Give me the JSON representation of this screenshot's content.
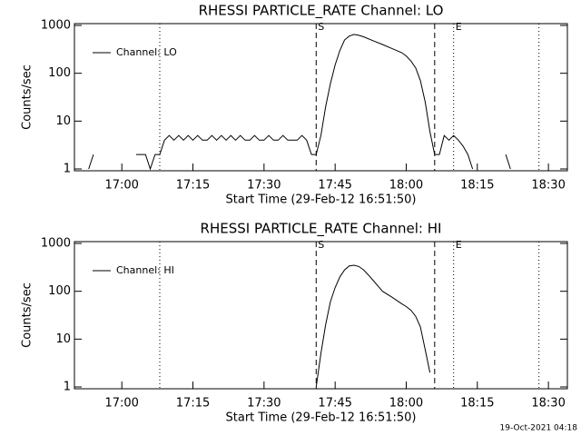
{
  "chart_data": [
    {
      "type": "line",
      "title": "RHESSI PARTICLE_RATE Channel: LO",
      "xlabel": "Start Time (29-Feb-12 16:51:50)",
      "ylabel": "Counts/sec",
      "log_y": true,
      "x": [
        "16:53",
        "16:54",
        "16:55",
        "17:03",
        "17:05",
        "17:06",
        "17:07",
        "17:08",
        "17:09",
        "17:10",
        "17:11",
        "17:12",
        "17:13",
        "17:14",
        "17:15",
        "17:16",
        "17:17",
        "17:18",
        "17:19",
        "17:20",
        "17:21",
        "17:22",
        "17:23",
        "17:24",
        "17:25",
        "17:26",
        "17:27",
        "17:28",
        "17:29",
        "17:30",
        "17:31",
        "17:32",
        "17:33",
        "17:34",
        "17:35",
        "17:36",
        "17:37",
        "17:38",
        "17:39",
        "17:40",
        "17:41",
        "17:42",
        "17:43",
        "17:44",
        "17:45",
        "17:46",
        "17:47",
        "17:48",
        "17:49",
        "17:50",
        "17:51",
        "17:53",
        "17:55",
        "17:57",
        "17:59",
        "18:00",
        "18:01",
        "18:02",
        "18:03",
        "18:04",
        "18:05",
        "18:06",
        "18:07",
        "18:08",
        "18:09",
        "18:10",
        "18:11",
        "18:12",
        "18:13",
        "18:14",
        "18:15",
        "18:21",
        "18:22"
      ],
      "series": [
        {
          "name": "Channel: LO",
          "color": "#000000",
          "values": [
            1,
            2,
            null,
            2,
            2,
            1,
            2,
            2,
            4,
            5,
            4,
            5,
            4,
            5,
            4,
            5,
            4,
            4,
            5,
            4,
            5,
            4,
            5,
            4,
            5,
            4,
            4,
            5,
            4,
            4,
            5,
            4,
            4,
            5,
            4,
            4,
            4,
            5,
            4,
            2,
            2,
            5,
            20,
            60,
            150,
            300,
            500,
            600,
            650,
            620,
            580,
            480,
            400,
            330,
            270,
            230,
            180,
            130,
            70,
            25,
            6,
            2,
            2,
            5,
            4,
            5,
            4,
            3,
            2,
            1,
            null,
            2,
            1
          ]
        }
      ],
      "xlim": [
        "16:50",
        "18:34"
      ],
      "xticks": [
        "17:00",
        "17:15",
        "17:30",
        "17:45",
        "18:00",
        "18:15",
        "18:30"
      ],
      "ylim": [
        1,
        1000
      ],
      "yticks": [
        1,
        10,
        100,
        1000
      ],
      "markers": [
        {
          "x": "17:08",
          "style": "dotted"
        },
        {
          "x": "17:41",
          "style": "dashed",
          "label": "S"
        },
        {
          "x": "18:06",
          "style": "dashed"
        },
        {
          "x": "18:10",
          "style": "dotted",
          "label": "E"
        },
        {
          "x": "18:28",
          "style": "dotted"
        }
      ]
    },
    {
      "type": "line",
      "title": "RHESSI PARTICLE_RATE Channel: HI",
      "xlabel": "Start Time (29-Feb-12 16:51:50)",
      "ylabel": "Counts/sec",
      "log_y": true,
      "x": [
        "17:41",
        "17:42",
        "17:43",
        "17:44",
        "17:45",
        "17:46",
        "17:47",
        "17:48",
        "17:49",
        "17:50",
        "17:51",
        "17:52",
        "17:53",
        "17:54",
        "17:55",
        "17:57",
        "17:59",
        "18:00",
        "18:01",
        "18:02",
        "18:03",
        "18:04",
        "18:05"
      ],
      "series": [
        {
          "name": "Channel: HI",
          "color": "#000000",
          "values": [
            1,
            5,
            20,
            60,
            120,
            200,
            280,
            340,
            350,
            330,
            280,
            220,
            170,
            130,
            100,
            75,
            55,
            48,
            40,
            30,
            18,
            6,
            2
          ]
        }
      ],
      "xlim": [
        "16:50",
        "18:34"
      ],
      "xticks": [
        "17:00",
        "17:15",
        "17:30",
        "17:45",
        "18:00",
        "18:15",
        "18:30"
      ],
      "ylim": [
        1,
        1000
      ],
      "yticks": [
        1,
        10,
        100,
        1000
      ],
      "markers": [
        {
          "x": "17:08",
          "style": "dotted"
        },
        {
          "x": "17:41",
          "style": "dashed",
          "label": "S"
        },
        {
          "x": "18:06",
          "style": "dashed"
        },
        {
          "x": "18:10",
          "style": "dotted",
          "label": "E"
        },
        {
          "x": "18:28",
          "style": "dotted"
        }
      ]
    }
  ],
  "footer": "19-Oct-2021 04:18"
}
